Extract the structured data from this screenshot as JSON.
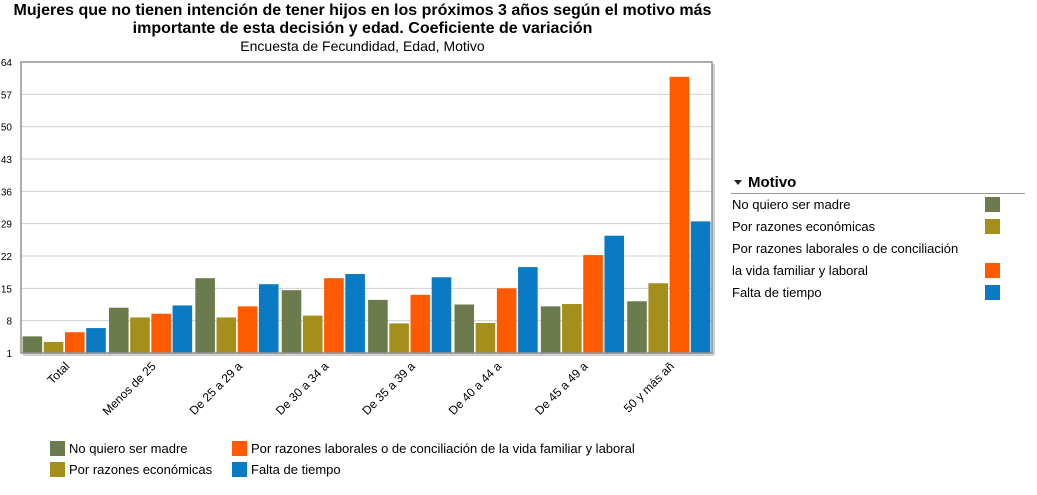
{
  "title_line1": "Mujeres que no tienen intención de tener hijos en los próximos 3 años según el motivo más",
  "title_line2": "importante de esta decisión y edad. Coeficiente de variación",
  "subtitle": "Encuesta de Fecundidad, Edad, Motivo",
  "side_legend": {
    "heading": "Motivo",
    "items": [
      {
        "label": "No quiero ser madre",
        "color": "#6b7b4e"
      },
      {
        "label": "Por razones económicas",
        "color": "#a48f1c"
      },
      {
        "label": "Por razones laborales o de conciliación",
        "color": ""
      },
      {
        "label": "la vida familiar y laboral",
        "color": "#ff5a00"
      },
      {
        "label": "Falta de tiempo",
        "color": "#0b7ac4"
      }
    ]
  },
  "bottom_legend": [
    {
      "label": "No quiero ser madre",
      "color": "#6b7b4e"
    },
    {
      "label": "Por razones laborales o de conciliación de la vida familiar y laboral",
      "color": "#ff5a00"
    },
    {
      "label": "Por razones económicas",
      "color": "#a48f1c"
    },
    {
      "label": "Falta de tiempo",
      "color": "#0b7ac4"
    }
  ],
  "chart_data": {
    "type": "bar",
    "title": "Mujeres que no tienen intención de tener hijos en los próximos 3 años según el motivo más importante de esta decisión y edad. Coeficiente de variación",
    "subtitle": "Encuesta de Fecundidad, Edad, Motivo",
    "categories": [
      "Total",
      "Menos de 25",
      "De 25 a 29 a",
      "De 30 a 34 a",
      "De 35 a 39 a",
      "De 40 a 44 a",
      "De 45 a 49 a",
      "50 y más añ"
    ],
    "series": [
      {
        "name": "No quiero ser madre",
        "color": "#6b7b4e",
        "values": [
          4.6,
          10.8,
          17.2,
          14.6,
          12.5,
          11.5,
          11.1,
          12.2
        ]
      },
      {
        "name": "Por razones económicas",
        "color": "#a48f1c",
        "values": [
          3.4,
          8.7,
          8.7,
          9.1,
          7.4,
          7.5,
          11.6,
          16.1
        ]
      },
      {
        "name": "Por razones laborales o de conciliación de la vida familiar y laboral",
        "color": "#ff5a00",
        "values": [
          5.5,
          9.5,
          11.1,
          17.2,
          13.6,
          15.0,
          22.2,
          60.8
        ]
      },
      {
        "name": "Falta de tiempo",
        "color": "#0b7ac4",
        "values": [
          6.4,
          11.3,
          15.9,
          18.1,
          17.4,
          19.6,
          26.4,
          29.5
        ]
      }
    ],
    "yticks": [
      "1",
      "8",
      "15",
      "22",
      "29",
      "36",
      "43",
      "50",
      "57",
      "64"
    ],
    "ylim": [
      1,
      64
    ],
    "grid": true,
    "legend": "right and bottom"
  }
}
